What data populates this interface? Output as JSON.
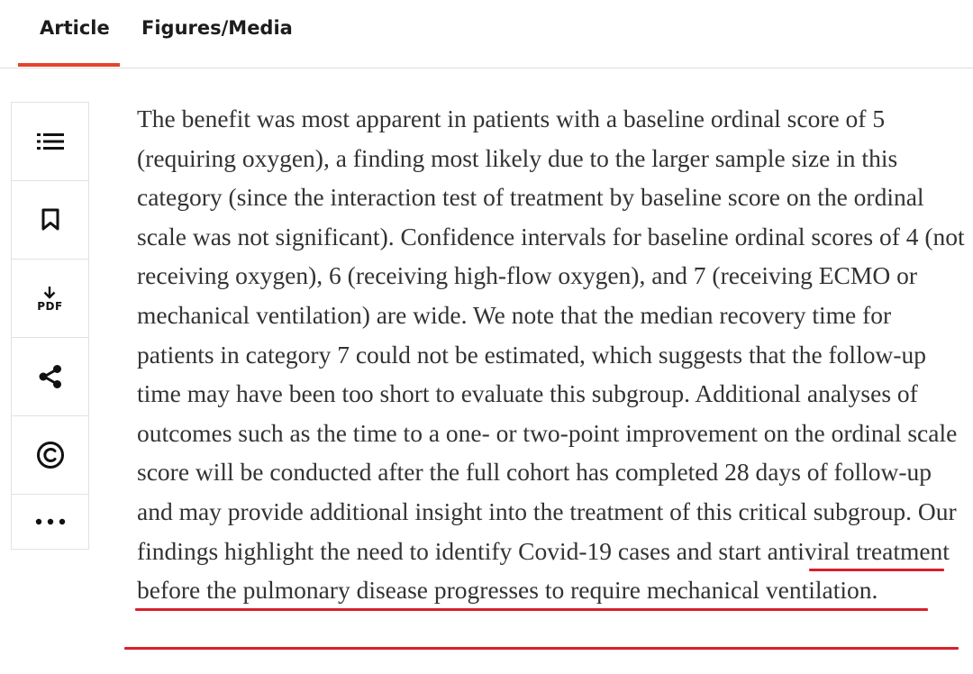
{
  "tabs": [
    {
      "label": "Article",
      "active": true
    },
    {
      "label": "Figures/Media",
      "active": false
    }
  ],
  "accent_color": "#e5432a",
  "highlight_color": "#d9202a",
  "tools": [
    {
      "icon": "list-icon"
    },
    {
      "icon": "bookmark-icon"
    },
    {
      "icon": "download-pdf-icon",
      "label": "PDF"
    },
    {
      "icon": "share-icon"
    },
    {
      "icon": "copyright-icon"
    },
    {
      "icon": "more-icon"
    }
  ],
  "article": {
    "body": "The benefit was most apparent in patients with a baseline ordinal score of 5 (requiring oxygen), a finding most likely due to the larger sample size in this category (since the interaction test of treatment by baseline score on the ordinal scale was not significant). Confidence intervals for baseline ordinal scores of 4 (not receiving oxygen), 6 (receiving high-flow oxygen), and 7 (receiving ECMO or mechanical ventilation) are wide. We note that the median recovery time for patients in category 7 could not be estimated, which suggests that the follow-up time may have been too short to evaluate this subgroup. Additional analyses of outcomes such as the time to a one- or two-point improvement on the ordinal scale score will be conducted after the full cohort has completed 28 days of follow-up and may provide additional insight into the treatment of this critical subgroup.",
    "highlighted": "Our findings highlight the need to identify Covid-19 cases and start antiviral treatment before the pulmonary disease progresses to require mechanical ventilation."
  }
}
